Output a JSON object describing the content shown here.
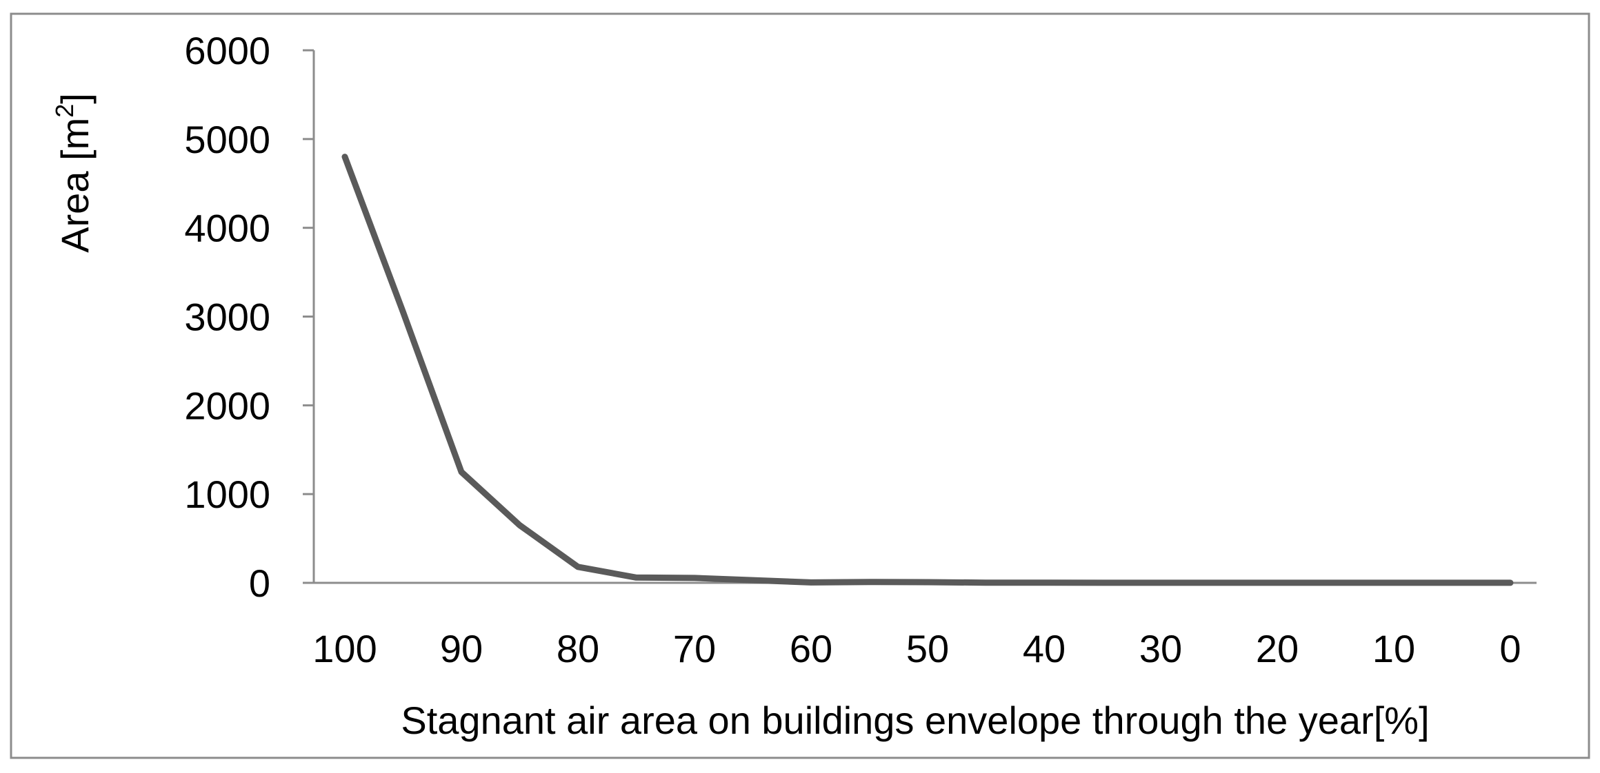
{
  "chart_data": {
    "type": "line",
    "title": "",
    "xlabel": "Stagnant air area on buildings envelope through the year[%]",
    "ylabel": "Area [m²]",
    "ylabel_parts": {
      "base": "Area [m",
      "superscript": "2",
      "close": "]"
    },
    "xlim": [
      100,
      0
    ],
    "ylim": [
      0,
      6000
    ],
    "x_ticks": [
      "100",
      "90",
      "80",
      "70",
      "60",
      "50",
      "40",
      "30",
      "20",
      "10",
      "0"
    ],
    "y_ticks": [
      "0",
      "1000",
      "2000",
      "3000",
      "4000",
      "5000",
      "6000"
    ],
    "grid": false,
    "legend": "none",
    "series": [
      {
        "color": "#5a5a5a",
        "x": [
          100,
          95,
          90,
          85,
          80,
          75,
          70,
          65,
          60,
          55,
          50,
          45,
          40,
          35,
          30,
          25,
          20,
          15,
          10,
          5,
          0
        ],
        "y": [
          4800,
          3050,
          1250,
          650,
          180,
          60,
          55,
          30,
          5,
          10,
          8,
          2,
          2,
          1,
          1,
          1,
          1,
          1,
          1,
          1,
          1
        ]
      }
    ]
  }
}
